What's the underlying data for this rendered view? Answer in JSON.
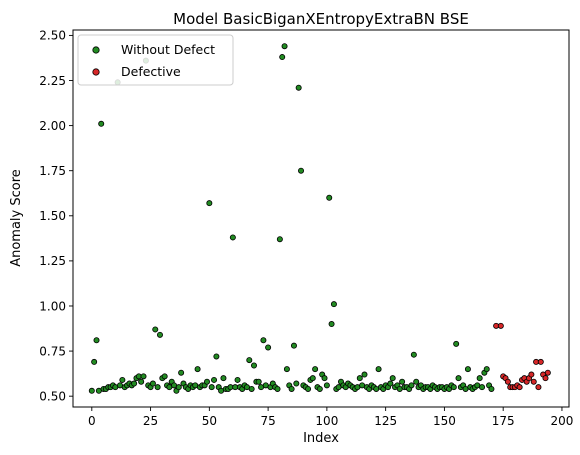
{
  "chart_data": {
    "type": "scatter",
    "title": "Model BasicBiganXEntropyExtraBN BSE",
    "xlabel": "Index",
    "ylabel": "Anomaly Score",
    "xlim": [
      -8,
      203
    ],
    "ylim": [
      0.44,
      2.53
    ],
    "xticks": [
      "0",
      "25",
      "50",
      "75",
      "100",
      "125",
      "150",
      "175",
      "200"
    ],
    "yticks": [
      "0.50",
      "0.75",
      "1.00",
      "1.25",
      "1.50",
      "1.75",
      "2.00",
      "2.25",
      "2.50"
    ],
    "grid": false,
    "legend_position": "top-left",
    "series": [
      {
        "name": "Without Defect",
        "color": "#228b22",
        "points": [
          [
            0,
            0.53
          ],
          [
            1,
            0.69
          ],
          [
            2,
            0.81
          ],
          [
            3,
            0.53
          ],
          [
            4,
            2.01
          ],
          [
            5,
            0.54
          ],
          [
            6,
            0.54
          ],
          [
            7,
            0.55
          ],
          [
            8,
            0.55
          ],
          [
            9,
            0.56
          ],
          [
            10,
            0.55
          ],
          [
            11,
            2.24
          ],
          [
            12,
            0.56
          ],
          [
            13,
            0.59
          ],
          [
            14,
            0.55
          ],
          [
            15,
            0.56
          ],
          [
            16,
            0.57
          ],
          [
            17,
            0.56
          ],
          [
            18,
            0.57
          ],
          [
            19,
            0.6
          ],
          [
            20,
            0.61
          ],
          [
            21,
            0.58
          ],
          [
            22,
            0.61
          ],
          [
            23,
            2.36
          ],
          [
            24,
            0.56
          ],
          [
            25,
            0.55
          ],
          [
            26,
            0.57
          ],
          [
            27,
            0.87
          ],
          [
            28,
            0.55
          ],
          [
            29,
            0.84
          ],
          [
            30,
            0.6
          ],
          [
            31,
            0.61
          ],
          [
            32,
            0.56
          ],
          [
            33,
            0.55
          ],
          [
            34,
            0.58
          ],
          [
            35,
            0.56
          ],
          [
            36,
            0.53
          ],
          [
            37,
            0.55
          ],
          [
            38,
            0.63
          ],
          [
            39,
            0.57
          ],
          [
            40,
            0.55
          ],
          [
            41,
            0.54
          ],
          [
            42,
            0.56
          ],
          [
            43,
            0.55
          ],
          [
            44,
            0.56
          ],
          [
            45,
            0.65
          ],
          [
            46,
            0.55
          ],
          [
            47,
            0.56
          ],
          [
            48,
            0.56
          ],
          [
            49,
            0.58
          ],
          [
            50,
            1.57
          ],
          [
            51,
            0.55
          ],
          [
            52,
            0.59
          ],
          [
            53,
            0.72
          ],
          [
            54,
            0.55
          ],
          [
            55,
            0.53
          ],
          [
            56,
            0.6
          ],
          [
            57,
            0.54
          ],
          [
            58,
            0.54
          ],
          [
            59,
            0.55
          ],
          [
            60,
            1.38
          ],
          [
            61,
            0.55
          ],
          [
            62,
            0.59
          ],
          [
            63,
            0.55
          ],
          [
            64,
            0.54
          ],
          [
            65,
            0.56
          ],
          [
            66,
            0.55
          ],
          [
            67,
            0.7
          ],
          [
            68,
            0.54
          ],
          [
            69,
            0.67
          ],
          [
            70,
            0.58
          ],
          [
            71,
            0.58
          ],
          [
            72,
            0.55
          ],
          [
            73,
            0.81
          ],
          [
            74,
            0.56
          ],
          [
            75,
            0.77
          ],
          [
            76,
            0.55
          ],
          [
            77,
            0.57
          ],
          [
            78,
            0.55
          ],
          [
            79,
            0.54
          ],
          [
            80,
            1.37
          ],
          [
            81,
            2.38
          ],
          [
            82,
            2.44
          ],
          [
            83,
            0.65
          ],
          [
            84,
            0.56
          ],
          [
            85,
            0.54
          ],
          [
            86,
            0.78
          ],
          [
            87,
            0.57
          ],
          [
            88,
            2.21
          ],
          [
            89,
            1.75
          ],
          [
            90,
            0.56
          ],
          [
            91,
            0.55
          ],
          [
            92,
            0.54
          ],
          [
            93,
            0.59
          ],
          [
            94,
            0.6
          ],
          [
            95,
            0.65
          ],
          [
            96,
            0.55
          ],
          [
            97,
            0.54
          ],
          [
            98,
            0.62
          ],
          [
            99,
            0.6
          ],
          [
            100,
            0.56
          ],
          [
            101,
            1.6
          ],
          [
            102,
            0.9
          ],
          [
            103,
            1.01
          ],
          [
            104,
            0.54
          ],
          [
            105,
            0.55
          ],
          [
            106,
            0.58
          ],
          [
            107,
            0.56
          ],
          [
            108,
            0.55
          ],
          [
            109,
            0.57
          ],
          [
            110,
            0.56
          ],
          [
            111,
            0.55
          ],
          [
            112,
            0.54
          ],
          [
            113,
            0.55
          ],
          [
            114,
            0.6
          ],
          [
            115,
            0.56
          ],
          [
            116,
            0.62
          ],
          [
            117,
            0.55
          ],
          [
            118,
            0.54
          ],
          [
            119,
            0.56
          ],
          [
            120,
            0.55
          ],
          [
            121,
            0.54
          ],
          [
            122,
            0.65
          ],
          [
            123,
            0.55
          ],
          [
            124,
            0.54
          ],
          [
            125,
            0.56
          ],
          [
            126,
            0.55
          ],
          [
            127,
            0.57
          ],
          [
            128,
            0.6
          ],
          [
            129,
            0.55
          ],
          [
            130,
            0.56
          ],
          [
            131,
            0.54
          ],
          [
            132,
            0.58
          ],
          [
            133,
            0.55
          ],
          [
            134,
            0.55
          ],
          [
            135,
            0.54
          ],
          [
            136,
            0.56
          ],
          [
            137,
            0.73
          ],
          [
            138,
            0.58
          ],
          [
            139,
            0.55
          ],
          [
            140,
            0.56
          ],
          [
            141,
            0.54
          ],
          [
            142,
            0.55
          ],
          [
            143,
            0.55
          ],
          [
            144,
            0.54
          ],
          [
            145,
            0.56
          ],
          [
            146,
            0.55
          ],
          [
            147,
            0.54
          ],
          [
            148,
            0.55
          ],
          [
            149,
            0.55
          ],
          [
            150,
            0.54
          ],
          [
            151,
            0.55
          ],
          [
            152,
            0.54
          ],
          [
            153,
            0.56
          ],
          [
            154,
            0.55
          ],
          [
            155,
            0.79
          ],
          [
            156,
            0.6
          ],
          [
            157,
            0.55
          ],
          [
            158,
            0.56
          ],
          [
            159,
            0.54
          ],
          [
            160,
            0.65
          ],
          [
            161,
            0.55
          ],
          [
            162,
            0.54
          ],
          [
            163,
            0.55
          ],
          [
            164,
            0.56
          ],
          [
            165,
            0.6
          ],
          [
            166,
            0.55
          ],
          [
            167,
            0.63
          ],
          [
            168,
            0.65
          ],
          [
            169,
            0.56
          ],
          [
            170,
            0.54
          ]
        ]
      },
      {
        "name": "Defective",
        "color": "#d62728",
        "points": [
          [
            172,
            0.89
          ],
          [
            174,
            0.89
          ],
          [
            175,
            0.61
          ],
          [
            176,
            0.6
          ],
          [
            177,
            0.58
          ],
          [
            178,
            0.55
          ],
          [
            179,
            0.55
          ],
          [
            180,
            0.55
          ],
          [
            181,
            0.56
          ],
          [
            182,
            0.55
          ],
          [
            183,
            0.59
          ],
          [
            184,
            0.6
          ],
          [
            185,
            0.58
          ],
          [
            186,
            0.6
          ],
          [
            187,
            0.62
          ],
          [
            188,
            0.58
          ],
          [
            189,
            0.69
          ],
          [
            190,
            0.55
          ],
          [
            191,
            0.69
          ],
          [
            192,
            0.62
          ],
          [
            193,
            0.6
          ],
          [
            194,
            0.63
          ]
        ]
      }
    ]
  }
}
